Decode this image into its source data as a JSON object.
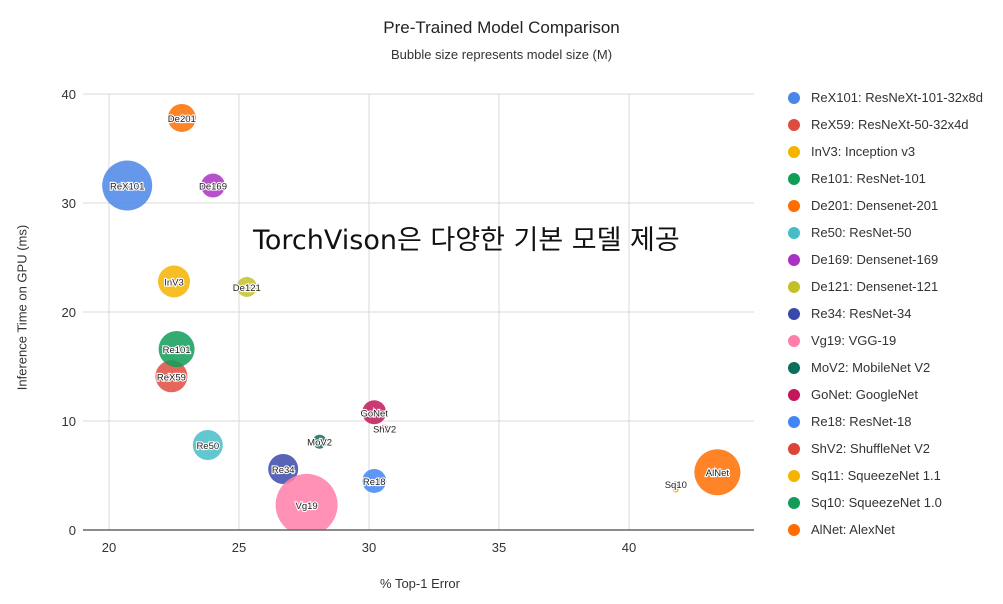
{
  "chart_data": {
    "type": "bubble",
    "title": "Pre-Trained Model Comparison",
    "subtitle": "Bubble size represents model size (M)",
    "xlabel": "% Top-1 Error",
    "ylabel": "Inference Time on GPU (ms)",
    "xlim": [
      19,
      44.5
    ],
    "ylim": [
      0,
      40
    ],
    "xticks": [
      20,
      25,
      30,
      35,
      40
    ],
    "yticks": [
      0,
      10,
      20,
      30,
      40
    ],
    "grid": true,
    "legend_position": "right",
    "annotation": "TorchVison은 다양한 기본 모델 제공",
    "series": [
      {
        "id": "ReX101",
        "name": "ReX101: ResNeXt-101-32x8d",
        "x": 20.7,
        "y": 31.6,
        "r": 25,
        "color": "#4a86e8"
      },
      {
        "id": "ReX59",
        "name": "ReX59: ResNeXt-50-32x4d",
        "x": 22.4,
        "y": 14.1,
        "r": 16,
        "color": "#e04b3f"
      },
      {
        "id": "InV3",
        "name": "InV3: Inception v3",
        "x": 22.5,
        "y": 22.8,
        "r": 16,
        "color": "#f4b400"
      },
      {
        "id": "Re101",
        "name": "Re101: ResNet-101",
        "x": 22.6,
        "y": 16.6,
        "r": 18,
        "color": "#0f9d58"
      },
      {
        "id": "De201",
        "name": "De201: Densenet-201",
        "x": 22.8,
        "y": 37.8,
        "r": 14,
        "color": "#ff6d01"
      },
      {
        "id": "Re50",
        "name": "Re50: ResNet-50",
        "x": 23.8,
        "y": 7.8,
        "r": 15,
        "color": "#46bdc6"
      },
      {
        "id": "De169",
        "name": "De169: Densenet-169",
        "x": 24.0,
        "y": 31.6,
        "r": 12,
        "color": "#ab30c4"
      },
      {
        "id": "De121",
        "name": "De121: Densenet-121",
        "x": 25.3,
        "y": 22.3,
        "r": 10,
        "color": "#c2c12a"
      },
      {
        "id": "Re34",
        "name": "Re34: ResNet-34",
        "x": 26.7,
        "y": 5.6,
        "r": 15,
        "color": "#3949ab"
      },
      {
        "id": "Vg19",
        "name": "Vg19: VGG-19",
        "x": 27.6,
        "y": 2.3,
        "r": 31,
        "color": "#ff7eaa"
      },
      {
        "id": "MoV2",
        "name": "MoV2: MobileNet V2",
        "x": 28.1,
        "y": 8.1,
        "r": 7,
        "color": "#0b6e5a"
      },
      {
        "id": "GoNet",
        "name": "GoNet: GoogleNet",
        "x": 30.2,
        "y": 10.8,
        "r": 12,
        "color": "#c2185b"
      },
      {
        "id": "Re18",
        "name": "Re18: ResNet-18",
        "x": 30.2,
        "y": 4.5,
        "r": 12,
        "color": "#4285f4"
      },
      {
        "id": "ShV2",
        "name": "ShV2: ShuffleNet V2",
        "x": 30.6,
        "y": 9.3,
        "r": 4,
        "color": "#db4437"
      },
      {
        "id": "Sq11",
        "name": "Sq11: SqueezeNet 1.1",
        "x": 41.8,
        "y": 3.7,
        "r": 3,
        "color": "#f4b400"
      },
      {
        "id": "Sq10",
        "name": "Sq10: SqueezeNet 1.0",
        "x": 41.8,
        "y": 4.2,
        "r": 3,
        "color": "#0f9d58"
      },
      {
        "id": "AlNet",
        "name": "AlNet: AlexNet",
        "x": 43.4,
        "y": 5.3,
        "r": 23,
        "color": "#ff6d01"
      }
    ]
  },
  "title": "Pre-Trained Model Comparison",
  "subtitle": "Bubble size represents model size (M)",
  "xlabel": "% Top-1 Error",
  "ylabel": "Inference Time on GPU (ms)",
  "overlay_text": "TorchVison은 다양한 기본 모델 제공"
}
